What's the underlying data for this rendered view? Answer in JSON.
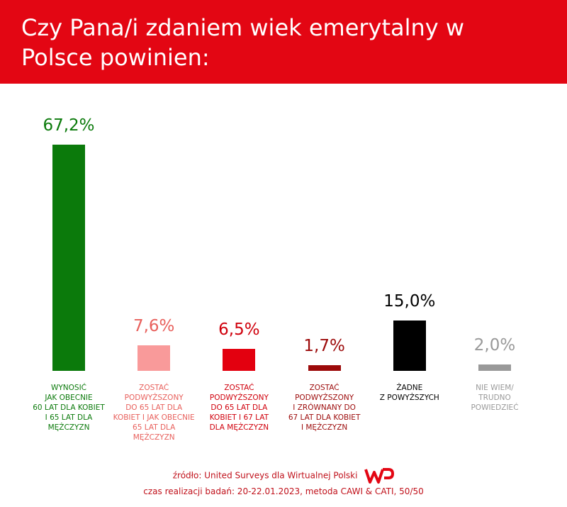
{
  "chart_data": {
    "type": "bar",
    "title": "Czy Pana/i zdaniem wiek emerytalny w Polsce powinien:",
    "categories": [
      "WYNOSIĆ\nJAK OBECNIE\n60 LAT DLA KOBIET\nI 65 LAT DLA\nMĘŻCZYZN",
      "ZOSTAĆ\nPODWYŻSZONY\nDO 65 LAT DLA\nKOBIET I JAK OBECNIE\n65 LAT DLA MĘŻCZYZN",
      "ZOSTAĆ\nPODWYŻSZONY\nDO 65 LAT DLA\nKOBIET I 67 LAT\nDLA MĘŻCZYZN",
      "ZOSTAĆ\nPODWYŻSZONY\nI ZRÓWNANY DO\n67 LAT DLA KOBIET\nI MĘŻCZYZN",
      "ŻADNE\nZ POWYŻSZYCH",
      "NIE WIEM/\nTRUDNO\nPOWIEDZIEĆ"
    ],
    "values": [
      67.2,
      7.6,
      6.5,
      1.7,
      15.0,
      2.0
    ],
    "value_labels": [
      "67,2%",
      "7,6%",
      "6,5%",
      "1,7%",
      "15,0%",
      "2,0%"
    ],
    "colors": [
      "#0b7a0b",
      "#f99a9a",
      "#e3000f",
      "#9c0a0a",
      "#000000",
      "#999999"
    ],
    "label_colors": [
      "#0b7a0b",
      "#e8605c",
      "#d0000c",
      "#9c0a0a",
      "#000000",
      "#999999"
    ],
    "source": "źródło: United Surveys dla Wirtualnej Polski",
    "note": "czas realizacji badań: 20-22.01.2023, metoda CAWI & CATI, 50/50"
  }
}
